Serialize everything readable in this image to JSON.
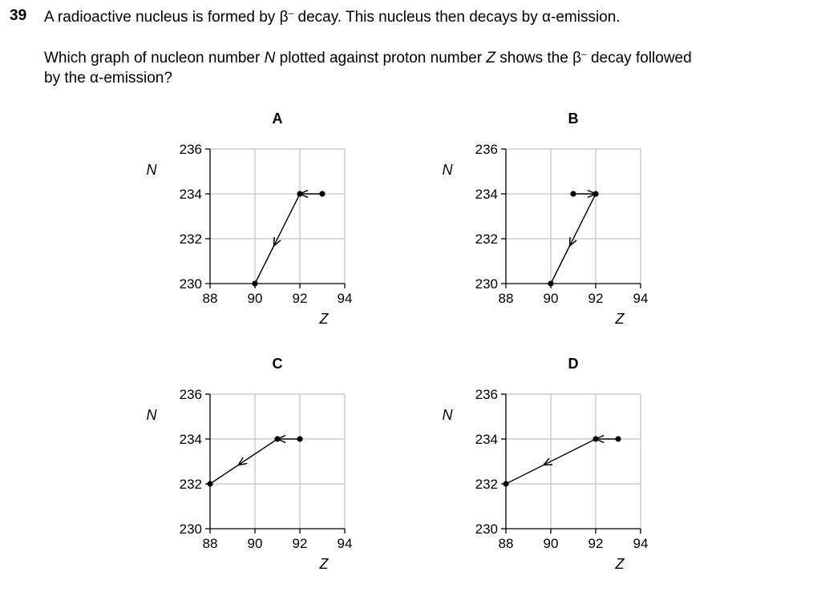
{
  "question": {
    "number": "39",
    "line1_a": "A radioactive nucleus is formed by ",
    "beta": "β",
    "minus": "–",
    "line1_b": " decay. This nucleus then decays by ",
    "alpha": "α",
    "line1_c": "-emission.",
    "line2_a": "Which graph of nucleon number ",
    "N": "N",
    "line2_b": " plotted against proton number ",
    "Z": "Z",
    "line2_c": " shows the ",
    "line2_d": " decay followed",
    "line3_a": "by the ",
    "line3_b": "-emission?"
  },
  "chart_data": [
    {
      "type": "line",
      "title": "A",
      "xlabel": "Z",
      "ylabel": "N",
      "xlim": [
        88,
        94
      ],
      "ylim": [
        230,
        236
      ],
      "xticks": [
        "88",
        "90",
        "92",
        "94"
      ],
      "yticks": [
        "230",
        "232",
        "234",
        "236"
      ],
      "grid": true,
      "points": [
        {
          "x": 93,
          "y": 234
        },
        {
          "x": 92,
          "y": 234
        },
        {
          "x": 90,
          "y": 230
        }
      ]
    },
    {
      "type": "line",
      "title": "B",
      "xlabel": "Z",
      "ylabel": "N",
      "xlim": [
        88,
        94
      ],
      "ylim": [
        230,
        236
      ],
      "xticks": [
        "88",
        "90",
        "92",
        "94"
      ],
      "yticks": [
        "230",
        "232",
        "234",
        "236"
      ],
      "grid": true,
      "points": [
        {
          "x": 91,
          "y": 234
        },
        {
          "x": 92,
          "y": 234
        },
        {
          "x": 90,
          "y": 230
        }
      ]
    },
    {
      "type": "line",
      "title": "C",
      "xlabel": "Z",
      "ylabel": "N",
      "xlim": [
        88,
        94
      ],
      "ylim": [
        230,
        236
      ],
      "xticks": [
        "88",
        "90",
        "92",
        "94"
      ],
      "yticks": [
        "230",
        "232",
        "234",
        "236"
      ],
      "grid": true,
      "points": [
        {
          "x": 92,
          "y": 234
        },
        {
          "x": 91,
          "y": 234
        },
        {
          "x": 88,
          "y": 232
        }
      ]
    },
    {
      "type": "line",
      "title": "D",
      "xlabel": "Z",
      "ylabel": "N",
      "xlim": [
        88,
        94
      ],
      "ylim": [
        230,
        236
      ],
      "xticks": [
        "88",
        "90",
        "92",
        "94"
      ],
      "yticks": [
        "230",
        "232",
        "234",
        "236"
      ],
      "grid": true,
      "points": [
        {
          "x": 93,
          "y": 234
        },
        {
          "x": 92,
          "y": 234
        },
        {
          "x": 88,
          "y": 232
        }
      ]
    }
  ]
}
